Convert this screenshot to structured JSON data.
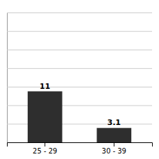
{
  "chart_data": {
    "type": "bar",
    "categories": [
      "25 - 29",
      "30 - 39"
    ],
    "values": [
      11,
      3.1
    ],
    "color": "#2e2e2e",
    "ylim": [
      0,
      28
    ],
    "yticks": [
      0,
      4,
      8,
      12,
      16,
      20,
      24,
      28
    ],
    "grid": true,
    "data_labels": true,
    "tick_labels": "x"
  }
}
